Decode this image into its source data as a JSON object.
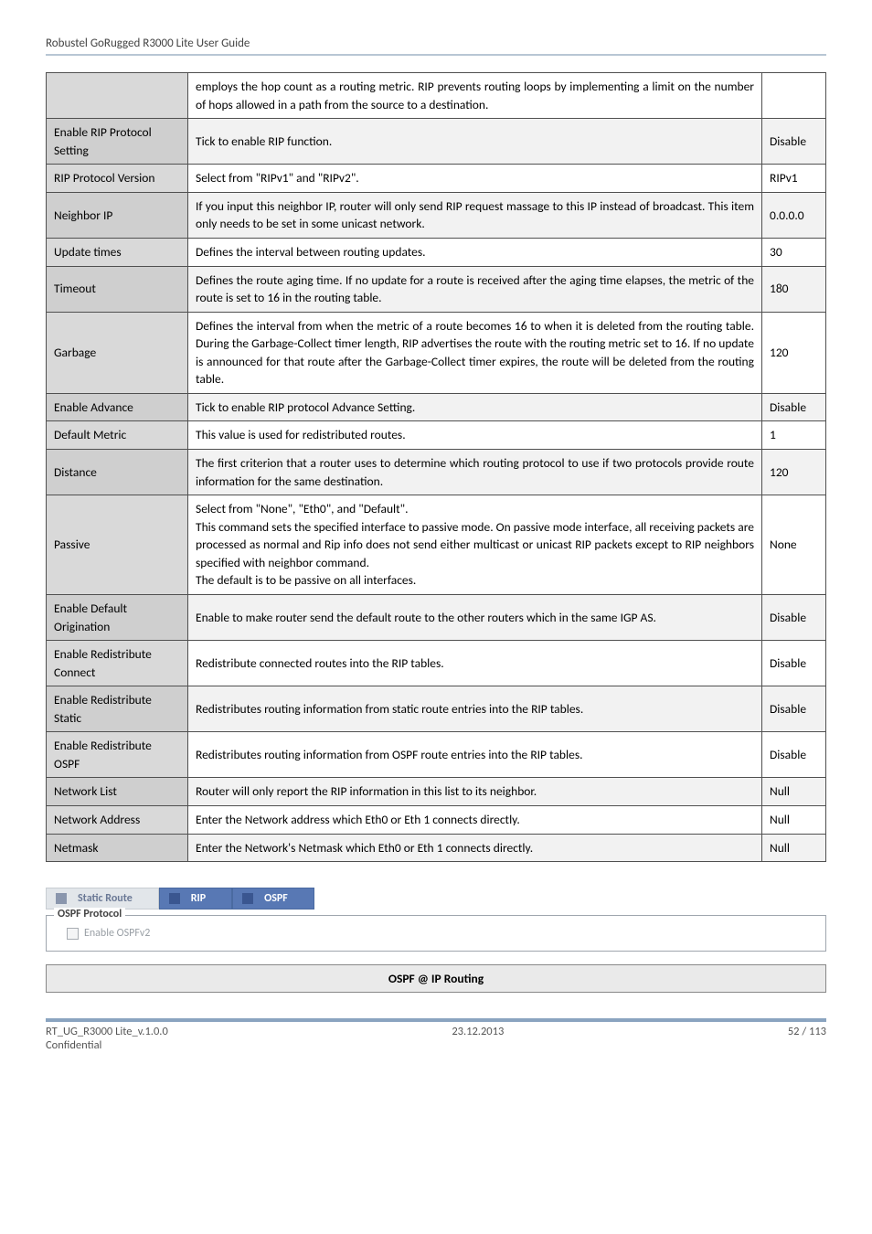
{
  "header": "Robustel GoRugged R3000 Lite User Guide",
  "table": {
    "rows": [
      {
        "param": "",
        "desc": "employs the hop count as a routing metric. RIP prevents routing loops by implementing a limit on the number of hops allowed in a path from the source to a destination.",
        "def": ""
      },
      {
        "param": "Enable RIP Protocol Setting",
        "desc": "Tick to enable RIP function.",
        "def": "Disable"
      },
      {
        "param": "RIP Protocol Version",
        "desc": "Select from \"RIPv1\" and \"RIPv2\".",
        "def": "RIPv1"
      },
      {
        "param": "Neighbor IP",
        "desc": "If you input this neighbor IP, router will only send RIP request massage to this IP instead of broadcast. This item only needs to be set in some unicast network.",
        "def": "0.0.0.0"
      },
      {
        "param": "Update times",
        "desc": "Defines the interval between routing updates.",
        "def": "30"
      },
      {
        "param": "Timeout",
        "desc": "Defines the route aging time. If no update for a route is received after the aging time elapses, the metric of the route is set to 16 in the routing table.",
        "def": "180"
      },
      {
        "param": "Garbage",
        "desc": "Defines the interval from when the metric of a route becomes 16 to when it is deleted from the routing table. During the Garbage-Collect timer length, RIP advertises the route with the routing metric set to 16. If no update is announced for that route after the Garbage-Collect timer expires, the route will be deleted from the routing table.",
        "def": "120"
      },
      {
        "param": "Enable Advance",
        "desc": "Tick to enable RIP protocol Advance Setting.",
        "def": "Disable"
      },
      {
        "param": "Default Metric",
        "desc": "This value is used for redistributed routes.",
        "def": "1"
      },
      {
        "param": "Distance",
        "desc": "The first criterion that a router uses to determine which routing protocol to use if two protocols provide route information for the same destination.",
        "def": "120"
      },
      {
        "param": "Passive",
        "desc": "Select from \"None\", \"Eth0\", and \"Default\".\nThis command sets the specified interface to passive mode. On passive mode interface, all receiving packets are processed as normal and Rip info does not send either multicast or unicast RIP packets except to RIP neighbors specified with neighbor command.\nThe default is to be passive on all interfaces.",
        "def": "None"
      },
      {
        "param": "Enable Default Origination",
        "desc": "Enable to make router send the default route to the other routers which in the same IGP AS.",
        "def": "Disable"
      },
      {
        "param": "Enable Redistribute Connect",
        "desc": "Redistribute connected routes into the RIP tables.",
        "def": "Disable"
      },
      {
        "param": "Enable Redistribute Static",
        "desc": "Redistributes routing information from static route entries into the RIP tables.",
        "def": "Disable"
      },
      {
        "param": "Enable Redistribute OSPF",
        "desc": "Redistributes routing information from OSPF route entries into the RIP tables.",
        "def": "Disable"
      },
      {
        "param": "Network List",
        "desc": "Router will only report the RIP information in this list to its neighbor.",
        "def": "Null"
      },
      {
        "param": "Network Address",
        "desc": "Enter the Network address which Eth0 or Eth 1 connects directly.",
        "def": "Null"
      },
      {
        "param": "Netmask",
        "desc": "Enter the Network's Netmask which Eth0 or Eth 1 connects directly.",
        "def": "Null"
      }
    ]
  },
  "tabs": {
    "static_route": "Static Route",
    "rip": "RIP",
    "ospf": "OSPF"
  },
  "ospf_box": {
    "legend": "OSPF Protocol",
    "checkbox_label": "Enable OSPFv2"
  },
  "section_title": "OSPF @ IP Routing",
  "footer": {
    "doc": "RT_UG_R3000 Lite_v.1.0.0",
    "conf": "Confidential",
    "date": "23.12.2013",
    "page": "52 / 113"
  }
}
